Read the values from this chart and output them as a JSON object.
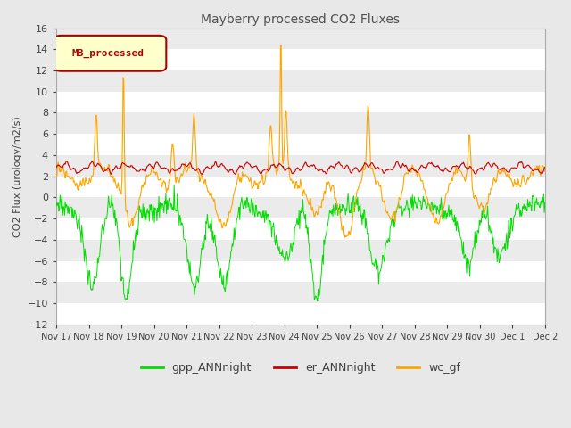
{
  "title": "Mayberry processed CO2 Fluxes",
  "ylabel": "CO2 Flux (urology/m2/s)",
  "ylim": [
    -12,
    16
  ],
  "yticks": [
    -12,
    -10,
    -8,
    -6,
    -4,
    -2,
    0,
    2,
    4,
    6,
    8,
    10,
    12,
    14,
    16
  ],
  "xtick_labels": [
    "Nov 17",
    "Nov 18",
    "Nov 19",
    "Nov 20",
    "Nov 21",
    "Nov 22",
    "Nov 23",
    "Nov 24",
    "Nov 25",
    "Nov 26",
    "Nov 27",
    "Nov 28",
    "Nov 29",
    "Nov 30",
    "Dec 1",
    "Dec 2"
  ],
  "colors": {
    "gpp_ANNnight": "#00DD00",
    "er_ANNnight": "#CC0000",
    "wc_gf": "#FFA500"
  },
  "legend_box_label": "MB_processed",
  "legend_box_facecolor": "#FFFFCC",
  "legend_box_edgecolor": "#AA0000",
  "legend_box_textcolor": "#AA0000",
  "plot_bg_light": "#EBEBEB",
  "plot_bg_dark": "#DCDCDC",
  "fig_facecolor": "#E8E8E8",
  "grid_color": "#FFFFFF",
  "title_color": "#505050",
  "axis_label_color": "#404040",
  "tick_label_color": "#404040"
}
